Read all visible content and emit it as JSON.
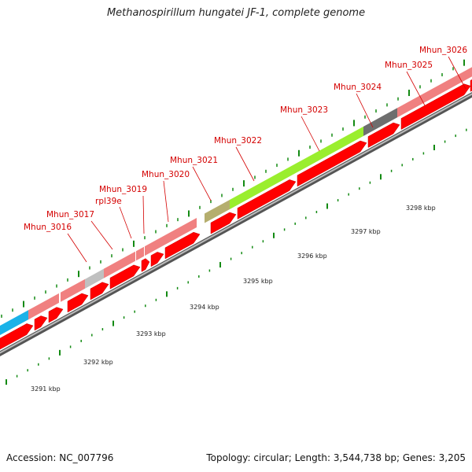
{
  "title": "Methanospirillum hungatei JF-1, complete genome",
  "footer": {
    "accession": "Accession: NC_007796",
    "info": "Topology: circular; Length: 3,544,738 bp; Genes: 3,205"
  },
  "colors": {
    "forward_cds": "#ff0000",
    "backbone": "#999999",
    "label": "#d40000",
    "tick": "#138a13"
  },
  "gene_labels": [
    "Mhun_3016",
    "Mhun_3017",
    "rpl39e",
    "Mhun_3019",
    "Mhun_3020",
    "Mhun_3021",
    "Mhun_3022",
    "Mhun_3023",
    "Mhun_3024",
    "Mhun_3025",
    "Mhun_3026"
  ],
  "scale_labels": [
    "3291 kbp",
    "3292 kbp",
    "3293 kbp",
    "3294 kbp",
    "3295 kbp",
    "3296 kbp",
    "3297 kbp",
    "3298 kbp"
  ],
  "cog_track": [
    {
      "color": "#1ab2e8"
    },
    {
      "color": "#f08080"
    },
    {
      "color": "#f08080"
    },
    {
      "color": "#c0c0c0"
    },
    {
      "color": "#f08080"
    },
    {
      "color": "#f08080"
    },
    {
      "color": "#f08080"
    },
    {
      "color": "#f08080"
    },
    {
      "color": "#b5ae6e"
    },
    {
      "color": "#9aee2e"
    },
    {
      "color": "#6e6e6e"
    },
    {
      "color": "#f08080"
    }
  ]
}
